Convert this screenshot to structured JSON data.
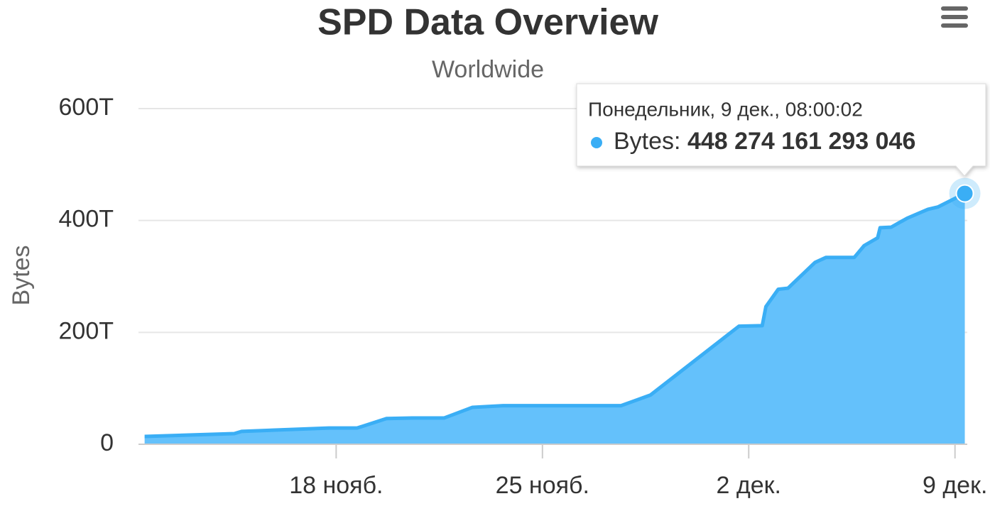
{
  "chart_data": {
    "type": "area",
    "title": "SPD Data Overview",
    "subtitle": "Worldwide",
    "y_axis_label": "Bytes",
    "x": [
      "11-11 12:00",
      "11-14 13:00",
      "11-14 19:00",
      "11-17 18:00",
      "11-18 17:00",
      "11-19 17:00",
      "11-20 14:00",
      "11-21 16:00",
      "11-22 15:00",
      "11-23 16:00",
      "11-27 16:00",
      "11-28 16:00",
      "12-01 16:00",
      "12-02 11:00",
      "12-02 14:00",
      "12-03 00:00",
      "12-03 08:00",
      "12-04 06:00",
      "12-04 15:00",
      "12-05 14:00",
      "12-05 22:00",
      "12-06 09:00",
      "12-06 11:00",
      "12-06 20:00",
      "12-07 09:00",
      "12-08 02:00",
      "12-08 10:00",
      "12-09 08:00"
    ],
    "series": [
      {
        "name": "Bytes",
        "color": "#64c1fb",
        "line_color": "#3aaef5",
        "values": [
          14000000000000,
          19000000000000,
          23000000000000,
          29000000000000,
          29000000000000,
          46000000000000,
          47000000000000,
          47000000000000,
          66000000000000,
          69000000000000,
          69000000000000,
          88000000000000,
          211000000000000,
          212000000000000,
          246000000000000,
          277000000000000,
          279000000000000,
          325000000000000,
          334000000000000,
          334000000000000,
          355000000000000,
          369000000000000,
          387000000000000,
          388000000000000,
          404000000000000,
          420000000000000,
          424000000000000,
          448274161293046
        ]
      }
    ],
    "xlim": [
      "11-11 07:00",
      "12-09 10:00"
    ],
    "xticks": [
      {
        "value": "11-18 00:00",
        "label": "18 нояб."
      },
      {
        "value": "11-25 00:00",
        "label": "25 нояб."
      },
      {
        "value": "12-02 00:00",
        "label": "2 дек."
      },
      {
        "value": "12-09 00:00",
        "label": "9 дек."
      }
    ],
    "ylim": [
      0,
      600000000000000
    ],
    "yticks": [
      0,
      {
        "value": 200000000000000,
        "label": "200T"
      },
      {
        "value": 400000000000000,
        "label": "400T"
      },
      {
        "value": 600000000000000,
        "label": "600T"
      }
    ],
    "grid": true,
    "tooltip": {
      "header": "Понедельник, 9 дек., 08:00:02",
      "name": "Bytes:",
      "value": "448 274 161 293 046"
    }
  }
}
